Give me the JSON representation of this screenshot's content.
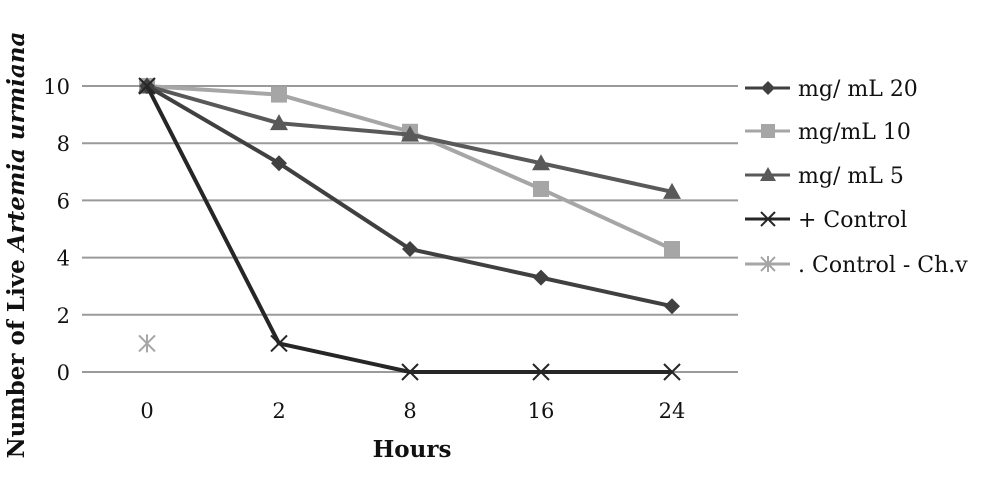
{
  "chart_data": {
    "type": "line",
    "xlabel": "Hours",
    "ylabel_prefix": "Number of Live ",
    "ylabel_italic": "Artemia urmiana",
    "categories": [
      "0",
      "2",
      "8",
      "16",
      "24"
    ],
    "ylim": [
      0,
      10
    ],
    "yticks": [
      "0",
      "2",
      "4",
      "6",
      "8",
      "10"
    ],
    "grid": "horizontal",
    "legend_position": "right",
    "series": [
      {
        "name": "mg/ mL 20",
        "values": [
          10,
          7.3,
          4.3,
          3.3,
          2.3
        ],
        "color": "#404040",
        "marker": "diamond"
      },
      {
        "name": "mg/mL 10",
        "values": [
          10,
          9.7,
          8.4,
          6.4,
          4.3
        ],
        "color": "#a6a6a6",
        "marker": "square"
      },
      {
        "name": "mg/ mL 5",
        "values": [
          10,
          8.7,
          8.3,
          7.3,
          6.3
        ],
        "color": "#595959",
        "marker": "triangle"
      },
      {
        "name": "+ Control",
        "values": [
          10,
          1,
          0,
          0,
          0
        ],
        "color": "#262626",
        "marker": "x"
      },
      {
        "name": ". Control - Ch.v",
        "values": [
          1,
          null,
          null,
          null,
          null
        ],
        "color": "#a6a6a6",
        "marker": "star"
      }
    ]
  }
}
